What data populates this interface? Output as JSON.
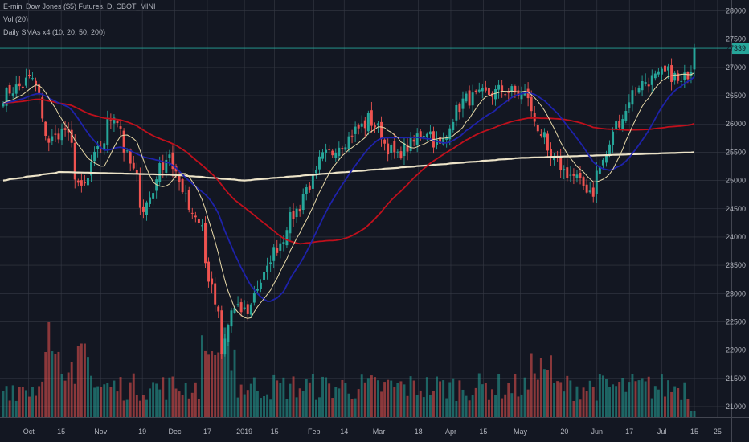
{
  "header": {
    "symbol_line": "E-mini Dow Jones ($5) Futures, D, CBOT_MINI",
    "volume_line": "Vol (20)",
    "sma_line": "Daily SMAs x4 (10, 20, 50, 200)"
  },
  "colors": {
    "background": "#131722",
    "grid": "#363a45",
    "up": "#26a69a",
    "down": "#ef5350",
    "up_volume": "#26a69a",
    "down_volume": "#ef5350",
    "sma10": "#e8d9a8",
    "sma20": "#1e22aa",
    "sma50": "#c0101c",
    "sma200": "#ece3c8",
    "last_price": "#26a69a"
  },
  "chart_data": {
    "type": "candlestick",
    "ylim": [
      20900,
      28150
    ],
    "y_ticks": [
      21000,
      21500,
      22000,
      22500,
      23000,
      23500,
      24000,
      24500,
      25000,
      25500,
      26000,
      26500,
      27000,
      27500,
      28000
    ],
    "x_ticks": [
      {
        "label": "Oct",
        "date": "2018-10-01"
      },
      {
        "label": "15",
        "date": "2018-10-15"
      },
      {
        "label": "Nov",
        "date": "2018-11-01"
      },
      {
        "label": "19",
        "date": "2018-11-19"
      },
      {
        "label": "Dec",
        "date": "2018-12-03"
      },
      {
        "label": "17",
        "date": "2018-12-17"
      },
      {
        "label": "2019",
        "date": "2019-01-02"
      },
      {
        "label": "15",
        "date": "2019-01-15"
      },
      {
        "label": "Feb",
        "date": "2019-02-01"
      },
      {
        "label": "14",
        "date": "2019-02-14"
      },
      {
        "label": "Mar",
        "date": "2019-03-01"
      },
      {
        "label": "18",
        "date": "2019-03-18"
      },
      {
        "label": "Apr",
        "date": "2019-04-01"
      },
      {
        "label": "15",
        "date": "2019-04-15"
      },
      {
        "label": "May",
        "date": "2019-05-01"
      },
      {
        "label": "20",
        "date": "2019-05-20"
      },
      {
        "label": "Jun",
        "date": "2019-06-03"
      },
      {
        "label": "17",
        "date": "2019-06-17"
      },
      {
        "label": "Jul",
        "date": "2019-07-01"
      },
      {
        "label": "15",
        "date": "2019-07-15"
      },
      {
        "label": "25",
        "date": "2019-07-25"
      }
    ],
    "last_price": 27339,
    "last_price_label": "27339",
    "close_anchors": [
      {
        "date": "2018-09-20",
        "close": 26500
      },
      {
        "date": "2018-10-03",
        "close": 26800
      },
      {
        "date": "2018-10-10",
        "close": 25700
      },
      {
        "date": "2018-10-17",
        "close": 25900
      },
      {
        "date": "2018-10-24",
        "close": 24800
      },
      {
        "date": "2018-11-07",
        "close": 26200
      },
      {
        "date": "2018-11-20",
        "close": 24500
      },
      {
        "date": "2018-11-30",
        "close": 25500
      },
      {
        "date": "2018-12-04",
        "close": 25050
      },
      {
        "date": "2018-12-14",
        "close": 24200
      },
      {
        "date": "2018-12-24",
        "close": 21900
      },
      {
        "date": "2018-12-27",
        "close": 22700
      },
      {
        "date": "2019-01-03",
        "close": 22700
      },
      {
        "date": "2019-01-18",
        "close": 24000
      },
      {
        "date": "2019-02-05",
        "close": 25400
      },
      {
        "date": "2019-02-25",
        "close": 26100
      },
      {
        "date": "2019-03-08",
        "close": 25400
      },
      {
        "date": "2019-03-21",
        "close": 25900
      },
      {
        "date": "2019-03-27",
        "close": 25600
      },
      {
        "date": "2019-04-05",
        "close": 26400
      },
      {
        "date": "2019-04-23",
        "close": 26600
      },
      {
        "date": "2019-05-03",
        "close": 26500
      },
      {
        "date": "2019-05-13",
        "close": 25400
      },
      {
        "date": "2019-05-31",
        "close": 24800
      },
      {
        "date": "2019-06-10",
        "close": 25900
      },
      {
        "date": "2019-06-20",
        "close": 26700
      },
      {
        "date": "2019-07-03",
        "close": 26900
      },
      {
        "date": "2019-07-09",
        "close": 26700
      },
      {
        "date": "2019-07-15",
        "close": 27339
      }
    ],
    "sma_periods": [
      10,
      20,
      50,
      200
    ],
    "sma200_anchors": [
      {
        "date": "2018-09-20",
        "value": 25000
      },
      {
        "date": "2018-10-15",
        "value": 25150
      },
      {
        "date": "2018-12-03",
        "value": 25100
      },
      {
        "date": "2019-01-02",
        "value": 25000
      },
      {
        "date": "2019-03-01",
        "value": 25200
      },
      {
        "date": "2019-05-01",
        "value": 25400
      },
      {
        "date": "2019-07-15",
        "value": 25500
      }
    ]
  }
}
